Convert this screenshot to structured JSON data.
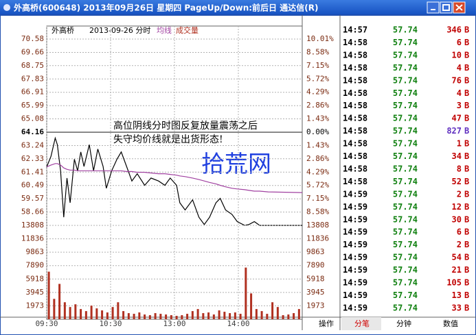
{
  "window": {
    "title": "外高桥(600648) 2013年09月26日 星期四 PageUp/Down:前后日 通达信(R)"
  },
  "chart_data": [
    {
      "type": "line",
      "title": "外高桥",
      "subtitle": "2013-09-26 分时",
      "annotations": [
        "高位阴线分时图反复放量震荡之后",
        "失守均价线就是出货形态!"
      ],
      "watermark": "拾荒网",
      "x": [
        0,
        4,
        8,
        10,
        13,
        16,
        19,
        22,
        26,
        29,
        32,
        35,
        40,
        44,
        48,
        53,
        56,
        61,
        66,
        70,
        75,
        80,
        85,
        92,
        98,
        105,
        111,
        116,
        122,
        125,
        130,
        137,
        143,
        148,
        153,
        159,
        163,
        168,
        174,
        179,
        186,
        190,
        195,
        200,
        208,
        240
      ],
      "series": [
        {
          "color": "#000000",
          "values": [
            61.77,
            62.5,
            63.76,
            63.3,
            61.5,
            58.3,
            61.0,
            59.3,
            62.3,
            61.5,
            62.8,
            61.8,
            63.3,
            61.5,
            63.0,
            61.8,
            60.3,
            61.5,
            62.3,
            62.8,
            61.8,
            60.8,
            61.3,
            60.5,
            61.0,
            60.8,
            60.5,
            61.0,
            60.5,
            59.3,
            58.8,
            59.5,
            58.3,
            57.8,
            58.3,
            59.3,
            59.6,
            58.8,
            58.5,
            58.0,
            57.74,
            57.8,
            58.0,
            57.74,
            57.74,
            57.74
          ]
        },
        {
          "name": "均线",
          "color": "#a040a0",
          "values": [
            61.77,
            61.9,
            62.0,
            62.0,
            61.9,
            61.7,
            61.6,
            61.55,
            61.55,
            61.5,
            61.5,
            61.5,
            61.5,
            61.5,
            61.5,
            61.5,
            61.5,
            61.5,
            61.5,
            61.5,
            61.45,
            61.45,
            61.4,
            61.4,
            61.35,
            61.3,
            61.3,
            61.25,
            61.2,
            61.15,
            61.1,
            61.0,
            60.9,
            60.8,
            60.7,
            60.6,
            60.5,
            60.4,
            60.3,
            60.25,
            60.2,
            60.15,
            60.1,
            60.1,
            60.05,
            60.0
          ]
        }
      ],
      "xlim": [
        0,
        240
      ],
      "xticks": [
        {
          "value": 0,
          "label": "09:30"
        },
        {
          "value": 60,
          "label": "10:30"
        },
        {
          "value": 120,
          "label": "13:00"
        },
        {
          "value": 180,
          "label": "14:00"
        }
      ],
      "ylim": [
        57.74,
        70.58
      ],
      "yticks": [
        70.58,
        69.66,
        68.75,
        67.83,
        66.91,
        65.99,
        65.08,
        64.16,
        63.24,
        62.33,
        61.41,
        60.49,
        59.57,
        58.66
      ],
      "y2lim": [
        -10.01,
        10.01
      ],
      "y2ticks": [
        {
          "value": 10.01,
          "label": "10.01%"
        },
        {
          "value": 8.58,
          "label": "8.58%"
        },
        {
          "value": 7.15,
          "label": "7.15%"
        },
        {
          "value": 5.72,
          "label": "5.72%"
        },
        {
          "value": 4.29,
          "label": "4.29%"
        },
        {
          "value": 2.86,
          "label": "2.86%"
        },
        {
          "value": 1.43,
          "label": "1.43%"
        },
        {
          "value": 0,
          "label": "0.00%"
        },
        {
          "value": -1.43,
          "label": "1.43%"
        },
        {
          "value": -2.86,
          "label": "2.86%"
        },
        {
          "value": -4.29,
          "label": "4.29%"
        },
        {
          "value": -5.72,
          "label": "5.72%"
        },
        {
          "value": -7.15,
          "label": "7.15%"
        },
        {
          "value": -8.58,
          "label": "8.58%"
        }
      ],
      "grid": true
    },
    {
      "type": "bar",
      "x": [
        2,
        7,
        12,
        17,
        22,
        27,
        32,
        37,
        42,
        47,
        52,
        57,
        62,
        67,
        72,
        77,
        82,
        87,
        92,
        97,
        102,
        107,
        112,
        117,
        122,
        127,
        132,
        137,
        142,
        147,
        152,
        157,
        162,
        167,
        172,
        177,
        182,
        187,
        192,
        197,
        202,
        207,
        212,
        217,
        222,
        227,
        232,
        237
      ],
      "series": [
        {
          "name": "成交量",
          "color": "#b03020",
          "values": [
            7000,
            3000,
            5200,
            2500,
            1800,
            2200,
            1500,
            1200,
            2000,
            1600,
            1300,
            1000,
            1800,
            2500,
            1200,
            900,
            800,
            1000,
            700,
            600,
            900,
            800,
            700,
            600,
            500,
            600,
            800,
            1200,
            1500,
            900,
            1000,
            700,
            1300,
            1100,
            900,
            1000,
            800,
            7600,
            3800,
            1500,
            1200,
            800,
            2500,
            1800,
            600,
            700,
            900,
            1500
          ]
        }
      ],
      "xlim": [
        0,
        240
      ],
      "ylim": [
        0,
        13808
      ],
      "yticks": [
        13808,
        11836,
        9863,
        7890,
        5918,
        3945,
        1973
      ],
      "grid": true
    }
  ],
  "trades": [
    {
      "time": "14:57",
      "price": 57.74,
      "volume": 346,
      "side": "B",
      "color": "#c00000"
    },
    {
      "time": "14:58",
      "price": 57.74,
      "volume": 6,
      "side": "B",
      "color": "#c00000"
    },
    {
      "time": "14:58",
      "price": 57.74,
      "volume": 10,
      "side": "B",
      "color": "#c00000"
    },
    {
      "time": "14:58",
      "price": 57.74,
      "volume": 4,
      "side": "B",
      "color": "#c00000"
    },
    {
      "time": "14:58",
      "price": 57.74,
      "volume": 76,
      "side": "B",
      "color": "#c00000"
    },
    {
      "time": "14:58",
      "price": 57.74,
      "volume": 4,
      "side": "B",
      "color": "#c00000"
    },
    {
      "time": "14:58",
      "price": 57.74,
      "volume": 3,
      "side": "B",
      "color": "#c00000"
    },
    {
      "time": "14:58",
      "price": 57.74,
      "volume": 47,
      "side": "B",
      "color": "#c00000"
    },
    {
      "time": "14:58",
      "price": 57.74,
      "volume": 827,
      "side": "B",
      "color": "#6030c0"
    },
    {
      "time": "14:58",
      "price": 57.74,
      "volume": 1,
      "side": "B",
      "color": "#c00000"
    },
    {
      "time": "14:58",
      "price": 57.74,
      "volume": 34,
      "side": "B",
      "color": "#c00000"
    },
    {
      "time": "14:58",
      "price": 57.74,
      "volume": 8,
      "side": "B",
      "color": "#c00000"
    },
    {
      "time": "14:58",
      "price": 57.74,
      "volume": 52,
      "side": "B",
      "color": "#c00000"
    },
    {
      "time": "14:59",
      "price": 57.74,
      "volume": 2,
      "side": "B",
      "color": "#c00000"
    },
    {
      "time": "14:59",
      "price": 57.74,
      "volume": 12,
      "side": "B",
      "color": "#c00000"
    },
    {
      "time": "14:59",
      "price": 57.74,
      "volume": 30,
      "side": "B",
      "color": "#c00000"
    },
    {
      "time": "14:59",
      "price": 57.74,
      "volume": 6,
      "side": "B",
      "color": "#c00000"
    },
    {
      "time": "14:59",
      "price": 57.74,
      "volume": 2,
      "side": "B",
      "color": "#c00000"
    },
    {
      "time": "14:59",
      "price": 57.74,
      "volume": 54,
      "side": "B",
      "color": "#c00000"
    },
    {
      "time": "14:59",
      "price": 57.74,
      "volume": 21,
      "side": "B",
      "color": "#c00000"
    },
    {
      "time": "14:59",
      "price": 57.74,
      "volume": 105,
      "side": "B",
      "color": "#c00000"
    },
    {
      "time": "14:59",
      "price": 57.74,
      "volume": 13,
      "side": "B",
      "color": "#c00000"
    },
    {
      "time": "14:59",
      "price": 57.74,
      "volume": 33,
      "side": "B",
      "color": "#c00000"
    }
  ],
  "tabs": [
    "操作",
    "分笔",
    "分钟",
    "数值"
  ]
}
